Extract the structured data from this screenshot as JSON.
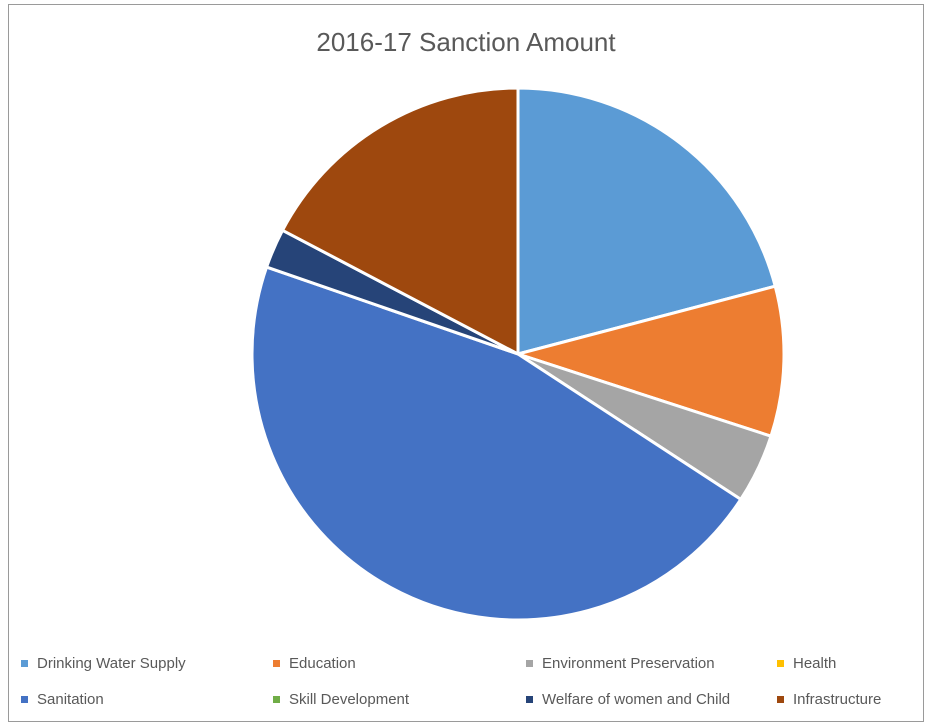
{
  "chart_data": {
    "type": "pie",
    "title": "2016-17 Sanction Amount",
    "categories": [
      "Drinking Water Supply",
      "Education",
      "Environment Preservation",
      "Health",
      "Sanitation",
      "Skill Development",
      "Welfare of women and Child",
      "Infrastructure"
    ],
    "values": [
      20.9,
      9.1,
      4.2,
      0,
      46.1,
      0,
      2.4,
      17.3
    ],
    "colors": [
      "#5B9BD5",
      "#ED7D31",
      "#A5A5A5",
      "#FFC000",
      "#4472C4",
      "#70AD47",
      "#264478",
      "#9E480E"
    ],
    "legend_position": "bottom"
  }
}
